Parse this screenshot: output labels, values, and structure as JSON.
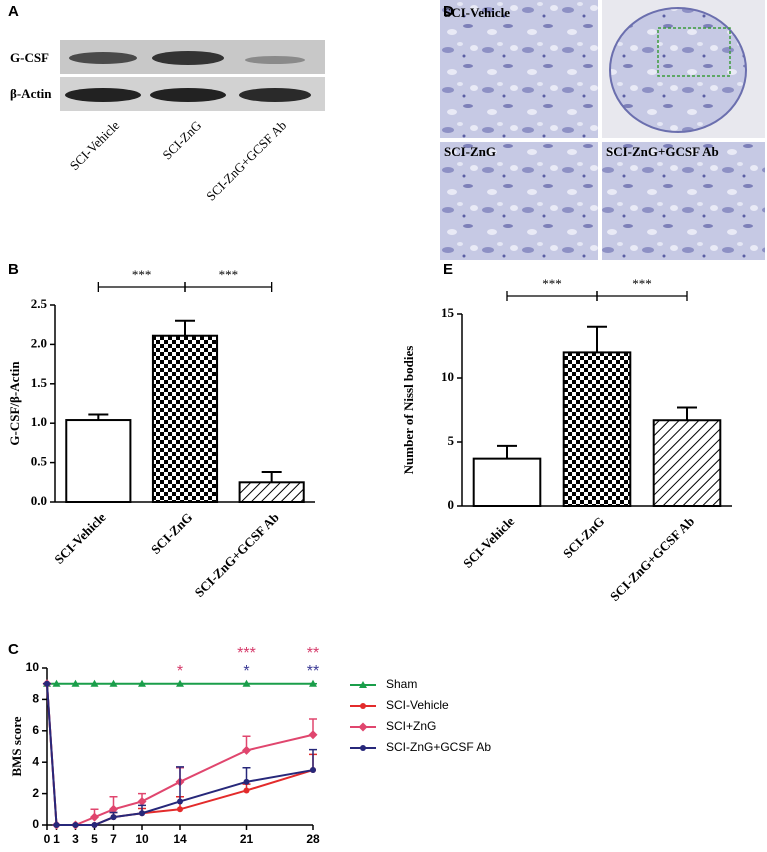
{
  "panel_A": {
    "label": "A",
    "rows": [
      "G-CSF",
      "β-Actin"
    ],
    "lanes": [
      "SCI-Vehicle",
      "SCI-ZnG",
      "SCI-ZnG+GCSF Ab"
    ]
  },
  "panel_D": {
    "label": "D",
    "captions": [
      "SCI-Vehicle",
      "SCI-ZnG",
      "SCI-ZnG+GCSF Ab"
    ]
  },
  "chart_data": [
    {
      "type": "bar",
      "panel_label": "B",
      "ylabel": "G-CSF/β-Actin",
      "categories": [
        "SCI-Vehicle",
        "SCI-ZnG",
        "SCI-ZnG+GCSF Ab"
      ],
      "values": [
        1.04,
        2.11,
        0.25
      ],
      "errors": [
        0.07,
        0.19,
        0.13
      ],
      "fills": [
        "none",
        "checker",
        "hatch"
      ],
      "color": "#000000",
      "ylim": [
        0,
        2.5
      ],
      "yticks": [
        {
          "value": 0,
          "label": "0.0"
        },
        0.5,
        {
          "value": 1,
          "label": "1.0"
        },
        1.5,
        {
          "value": 2,
          "label": "2.0"
        },
        2.5
      ],
      "comparisons": [
        {
          "between": [
            "SCI-Vehicle",
            "SCI-ZnG"
          ],
          "label": "***"
        },
        {
          "between": [
            "SCI-ZnG",
            "SCI-ZnG+GCSF Ab"
          ],
          "label": "***"
        }
      ]
    },
    {
      "type": "bar",
      "panel_label": "E",
      "ylabel": "Number of Nissl bodies",
      "categories": [
        "SCI-Vehicle",
        "SCI-ZnG",
        "SCI-ZnG+GCSF Ab"
      ],
      "values": [
        3.7,
        12.0,
        6.7
      ],
      "errors": [
        1.0,
        2.0,
        1.0
      ],
      "fills": [
        "none",
        "checker",
        "hatch"
      ],
      "color": "#000000",
      "ylim": [
        0,
        15
      ],
      "yticks": [
        0,
        5,
        10,
        15
      ],
      "comparisons": [
        {
          "between": [
            "SCI-Vehicle",
            "SCI-ZnG"
          ],
          "label": "***"
        },
        {
          "between": [
            "SCI-ZnG",
            "SCI-ZnG+GCSF Ab"
          ],
          "label": "***"
        }
      ]
    },
    {
      "type": "line",
      "panel_label": "C",
      "ylabel": "BMS score",
      "x": [
        0,
        1,
        3,
        5,
        7,
        10,
        14,
        21,
        28
      ],
      "xlim": [
        0,
        28
      ],
      "xticks": [
        0,
        1,
        3,
        5,
        7,
        10,
        14,
        21,
        28
      ],
      "ylim": [
        0,
        10
      ],
      "yticks": [
        0,
        2,
        4,
        6,
        8,
        10
      ],
      "legend": "right",
      "series": [
        {
          "name": "Sham",
          "color": "#1a9e4a",
          "marker": "triangle",
          "values": [
            9,
            9,
            9,
            9,
            9,
            9,
            9,
            9,
            9
          ],
          "errors": [
            0,
            0,
            0,
            0,
            0,
            0,
            0,
            0,
            0
          ]
        },
        {
          "name": "SCI-Vehicle",
          "color": "#e32b2b",
          "marker": "circle",
          "values": [
            9,
            0,
            0,
            0,
            0.5,
            0.75,
            1.0,
            2.2,
            3.5
          ],
          "errors": [
            0,
            0,
            0,
            0,
            0.3,
            0.3,
            0.8,
            0.4,
            1.0
          ]
        },
        {
          "name": "SCI+ZnG",
          "color": "#e0466e",
          "marker": "diamond",
          "values": [
            9,
            0,
            0,
            0.5,
            1.0,
            1.5,
            2.75,
            4.75,
            5.75
          ],
          "errors": [
            0,
            0,
            0,
            0.5,
            0.8,
            0.5,
            0.9,
            0.9,
            1.0
          ]
        },
        {
          "name": "SCI-ZnG+GCSF Ab",
          "color": "#27287a",
          "marker": "circle",
          "values": [
            9,
            0,
            0,
            0,
            0.5,
            0.75,
            1.5,
            2.75,
            3.5
          ],
          "errors": [
            0,
            0,
            0,
            0,
            0.3,
            0.5,
            2.2,
            0.9,
            1.3
          ]
        }
      ],
      "annotations": [
        {
          "x": 14,
          "label": "*",
          "color": "#d63a6a"
        },
        {
          "x": 21,
          "label": "***",
          "color": "#d63a6a"
        },
        {
          "x": 21,
          "label": "*",
          "color": "#3b3a95"
        },
        {
          "x": 28,
          "label": "**",
          "color": "#d63a6a"
        },
        {
          "x": 28,
          "label": "**",
          "color": "#3b3a95"
        }
      ]
    }
  ]
}
